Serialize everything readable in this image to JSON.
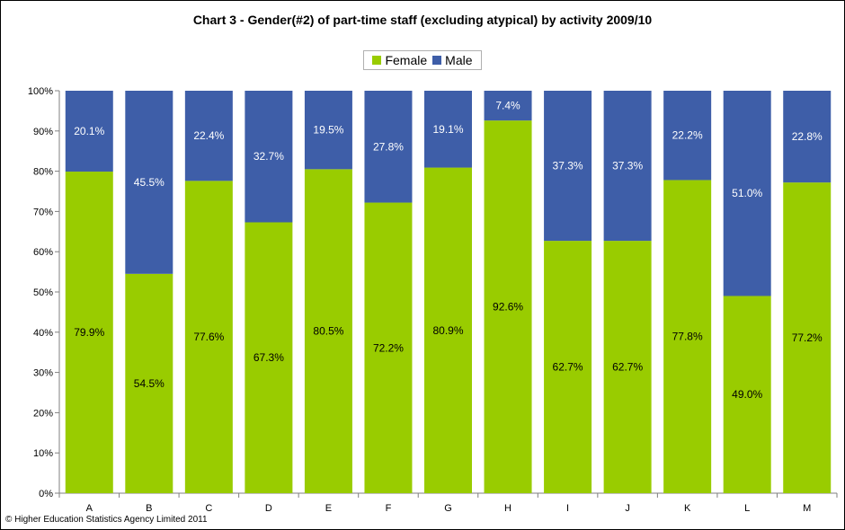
{
  "chart_data": {
    "type": "bar",
    "stacked": true,
    "title": "Chart 3 - Gender(#2) of part-time staff (excluding atypical) by activity 2009/10",
    "xlabel": "",
    "ylabel": "",
    "categories": [
      "A",
      "B",
      "C",
      "D",
      "E",
      "F",
      "G",
      "H",
      "I",
      "J",
      "K",
      "L",
      "M"
    ],
    "series": [
      {
        "name": "Female",
        "color": "#99cc00",
        "values": [
          79.9,
          54.5,
          77.6,
          67.3,
          80.5,
          72.2,
          80.9,
          92.6,
          62.7,
          62.7,
          77.8,
          49.0,
          77.2
        ],
        "labels": [
          "79.9%",
          "54.5%",
          "77.6%",
          "67.3%",
          "80.5%",
          "72.2%",
          "80.9%",
          "92.6%",
          "62.7%",
          "62.7%",
          "77.8%",
          "49.0%",
          "77.2%"
        ]
      },
      {
        "name": "Male",
        "color": "#3e5ea8",
        "values": [
          20.1,
          45.5,
          22.4,
          32.7,
          19.5,
          27.8,
          19.1,
          7.4,
          37.3,
          37.3,
          22.2,
          51.0,
          22.8
        ],
        "labels": [
          "20.1%",
          "45.5%",
          "22.4%",
          "32.7%",
          "19.5%",
          "27.8%",
          "19.1%",
          "7.4%",
          "37.3%",
          "37.3%",
          "22.2%",
          "51.0%",
          "22.8%"
        ]
      }
    ],
    "ylim": [
      0,
      100
    ],
    "yticks": [
      "0%",
      "10%",
      "20%",
      "30%",
      "40%",
      "50%",
      "60%",
      "70%",
      "80%",
      "90%",
      "100%"
    ],
    "legend_position": "top-center",
    "grid": false
  },
  "footer": {
    "copyright": "© Higher Education Statistics Agency Limited 2011"
  }
}
